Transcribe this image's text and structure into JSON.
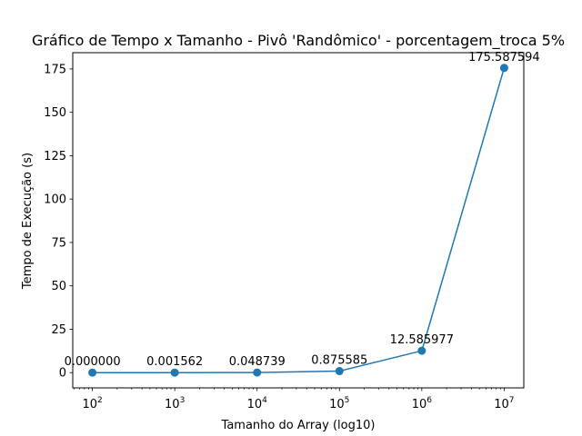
{
  "chart_data": {
    "type": "line",
    "title": "Gráfico de Tempo x Tamanho - Pivô 'Randômico' - porcentagem_troca 5%",
    "xlabel": "Tamanho do Array (log10)",
    "ylabel": "Tempo de Execução (s)",
    "x_scale": "log",
    "x": [
      100,
      1000,
      10000,
      100000,
      1000000,
      10000000
    ],
    "x_tick_labels": [
      {
        "base": "10",
        "exp": "2"
      },
      {
        "base": "10",
        "exp": "3"
      },
      {
        "base": "10",
        "exp": "4"
      },
      {
        "base": "10",
        "exp": "5"
      },
      {
        "base": "10",
        "exp": "6"
      },
      {
        "base": "10",
        "exp": "7"
      }
    ],
    "series": [
      {
        "values": [
          0.0,
          0.001562,
          0.048739,
          0.875585,
          12.585977,
          175.587594
        ],
        "labels": [
          "0.000000",
          "0.001562",
          "0.048739",
          "0.875585",
          "12.585977",
          "175.587594"
        ]
      }
    ],
    "y_ticks": [
      0,
      25,
      50,
      75,
      100,
      125,
      150,
      175
    ],
    "y_tick_labels": [
      "0",
      "25",
      "50",
      "75",
      "100",
      "125",
      "150",
      "175"
    ],
    "ylim": [
      -8.78,
      184.37
    ],
    "grid": false,
    "colors": {
      "line": "#1f77b4",
      "marker": "#1f77b4",
      "axes": "#000000"
    }
  }
}
